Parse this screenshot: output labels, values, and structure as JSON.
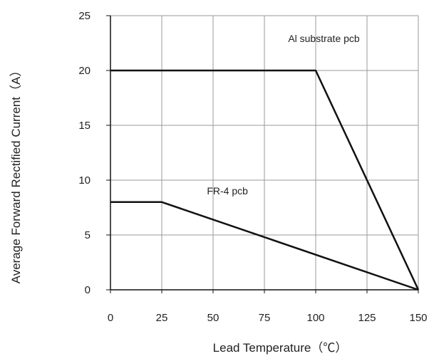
{
  "chart_data": {
    "type": "line",
    "title": "",
    "xlabel": "Lead Temperature（℃）",
    "ylabel": "Average Forward Rectified Current（A）",
    "xlim": [
      0,
      150
    ],
    "ylim": [
      0,
      25
    ],
    "x_ticks": [
      0,
      25,
      50,
      75,
      100,
      125,
      150
    ],
    "y_ticks": [
      0,
      5,
      10,
      15,
      20,
      25
    ],
    "grid": true,
    "legend": "none",
    "series": [
      {
        "x": [
          0,
          100,
          150
        ],
        "y": [
          20,
          20,
          0
        ],
        "color": "#111111"
      },
      {
        "x": [
          0,
          25,
          150
        ],
        "y": [
          8,
          8,
          0
        ],
        "color": "#111111"
      }
    ],
    "annotations": [
      {
        "text": "Al  substrate pcb",
        "x": 104,
        "y": 22.6
      },
      {
        "text": "FR-4  pcb",
        "x": 57,
        "y": 8.7
      }
    ]
  }
}
